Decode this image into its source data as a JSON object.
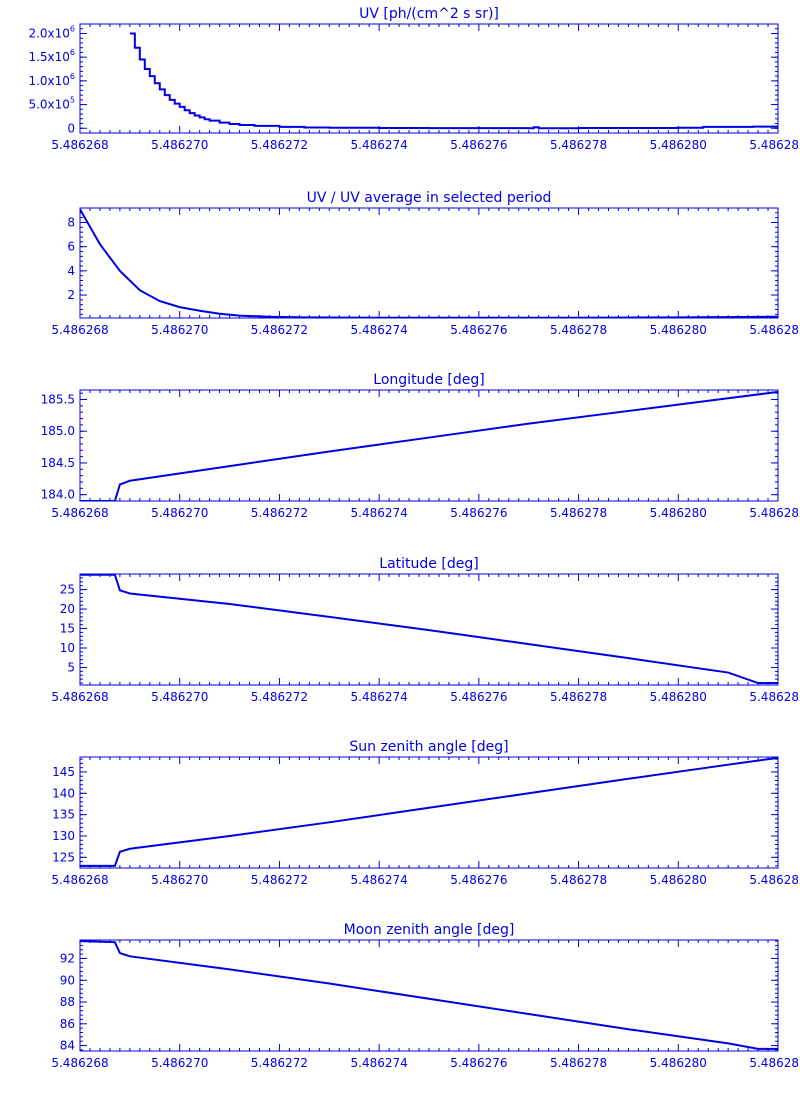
{
  "color": "#0000e0",
  "x_ticks": [
    "5.486268",
    "5.486270",
    "5.486272",
    "5.486274",
    "5.486276",
    "5.486278",
    "5.486280",
    "5.486282"
  ],
  "chart_data": [
    {
      "type": "line",
      "title": "UV [ph/(cm^2 s sr)]",
      "xlabel": "",
      "ylabel": "",
      "step": true,
      "xlim": [
        5.486268,
        5.486282
      ],
      "ylim": [
        -100000,
        2200000
      ],
      "y_ticks": [
        {
          "value": 0,
          "label": "0"
        },
        {
          "value": 500000,
          "label": "5.0x10",
          "exp": "5"
        },
        {
          "value": 1000000,
          "label": "1.0x10",
          "exp": "6"
        },
        {
          "value": 1500000,
          "label": "1.5x10",
          "exp": "6"
        },
        {
          "value": 2000000,
          "label": "2.0x10",
          "exp": "6"
        }
      ],
      "x": [
        5.486269,
        5.4862691,
        5.4862692,
        5.4862693,
        5.4862694,
        5.4862695,
        5.4862696,
        5.4862697,
        5.4862698,
        5.4862699,
        5.48627,
        5.4862701,
        5.4862702,
        5.4862703,
        5.4862704,
        5.4862705,
        5.4862706,
        5.4862708,
        5.486271,
        5.4862712,
        5.4862715,
        5.486272,
        5.4862725,
        5.486273,
        5.486274,
        5.486275,
        5.486276,
        5.486277,
        5.4862771,
        5.4862772,
        5.486278,
        5.486279,
        5.48628,
        5.4862805,
        5.486281,
        5.4862815,
        5.486282
      ],
      "y": [
        2000000,
        1700000,
        1450000,
        1250000,
        1100000,
        950000,
        820000,
        700000,
        600000,
        520000,
        450000,
        380000,
        320000,
        270000,
        230000,
        190000,
        160000,
        120000,
        90000,
        70000,
        50000,
        30000,
        15000,
        10000,
        5000,
        3000,
        2000,
        0,
        20000,
        0,
        5000,
        5000,
        10000,
        30000,
        30000,
        35000,
        60000
      ]
    },
    {
      "type": "line",
      "title": "UV / UV average in selected period",
      "xlabel": "",
      "ylabel": "",
      "xlim": [
        5.486268,
        5.486282
      ],
      "ylim": [
        0.1,
        9.2
      ],
      "y_ticks": [
        {
          "value": 2,
          "label": "2"
        },
        {
          "value": 4,
          "label": "4"
        },
        {
          "value": 6,
          "label": "6"
        },
        {
          "value": 8,
          "label": "8"
        }
      ],
      "x": [
        5.486268,
        5.4862684,
        5.4862688,
        5.4862692,
        5.4862696,
        5.48627,
        5.4862704,
        5.4862708,
        5.4862712,
        5.4862718,
        5.4862725,
        5.486274,
        5.486276,
        5.486278,
        5.48628,
        5.486282
      ],
      "y": [
        9.1,
        6.2,
        4.0,
        2.4,
        1.5,
        1.0,
        0.7,
        0.45,
        0.3,
        0.2,
        0.15,
        0.12,
        0.12,
        0.12,
        0.15,
        0.2
      ]
    },
    {
      "type": "line",
      "title": "Longitude [deg]",
      "xlabel": "",
      "ylabel": "",
      "xlim": [
        5.486268,
        5.486282
      ],
      "ylim": [
        183.9,
        185.65
      ],
      "y_ticks": [
        {
          "value": 184.0,
          "label": "184.0"
        },
        {
          "value": 184.5,
          "label": "184.5"
        },
        {
          "value": 185.0,
          "label": "185.0"
        },
        {
          "value": 185.5,
          "label": "185.5"
        }
      ],
      "x": [
        5.486268,
        5.4862687,
        5.4862688,
        5.486269,
        5.486271,
        5.486273,
        5.486275,
        5.486277,
        5.486279,
        5.486281,
        5.486282
      ],
      "y": [
        183.9,
        183.9,
        184.16,
        184.22,
        184.45,
        184.68,
        184.9,
        185.12,
        185.32,
        185.52,
        185.62
      ]
    },
    {
      "type": "line",
      "title": "Latitude [deg]",
      "xlabel": "",
      "ylabel": "",
      "xlim": [
        5.486268,
        5.486282
      ],
      "ylim": [
        0.5,
        29
      ],
      "y_ticks": [
        {
          "value": 5,
          "label": "5"
        },
        {
          "value": 10,
          "label": "10"
        },
        {
          "value": 15,
          "label": "15"
        },
        {
          "value": 20,
          "label": "20"
        },
        {
          "value": 25,
          "label": "25"
        }
      ],
      "x": [
        5.486268,
        5.4862687,
        5.4862688,
        5.486269,
        5.486271,
        5.486273,
        5.486275,
        5.486277,
        5.486279,
        5.486281,
        5.4862816,
        5.486282
      ],
      "y": [
        28.8,
        28.8,
        24.8,
        24.0,
        21.3,
        18.0,
        14.6,
        11.0,
        7.4,
        3.7,
        1.0,
        1.0
      ]
    },
    {
      "type": "line",
      "title": "Sun zenith angle [deg]",
      "xlabel": "",
      "ylabel": "",
      "xlim": [
        5.486268,
        5.486282
      ],
      "ylim": [
        122.5,
        148.5
      ],
      "y_ticks": [
        {
          "value": 125,
          "label": "125"
        },
        {
          "value": 130,
          "label": "130"
        },
        {
          "value": 135,
          "label": "135"
        },
        {
          "value": 140,
          "label": "140"
        },
        {
          "value": 145,
          "label": "145"
        }
      ],
      "x": [
        5.486268,
        5.4862687,
        5.4862688,
        5.486269,
        5.486271,
        5.486273,
        5.486275,
        5.486277,
        5.486279,
        5.486281,
        5.486282
      ],
      "y": [
        123.0,
        123.0,
        126.3,
        127.0,
        130.0,
        133.2,
        136.6,
        140.0,
        143.4,
        146.7,
        148.3
      ]
    },
    {
      "type": "line",
      "title": "Moon zenith angle [deg]",
      "xlabel": "",
      "ylabel": "",
      "xlim": [
        5.486268,
        5.486282
      ],
      "ylim": [
        83.5,
        93.7
      ],
      "y_ticks": [
        {
          "value": 84,
          "label": "84"
        },
        {
          "value": 86,
          "label": "86"
        },
        {
          "value": 88,
          "label": "88"
        },
        {
          "value": 90,
          "label": "90"
        },
        {
          "value": 92,
          "label": "92"
        }
      ],
      "x": [
        5.486268,
        5.4862687,
        5.4862688,
        5.486269,
        5.486271,
        5.486273,
        5.486275,
        5.486277,
        5.486279,
        5.486281,
        5.4862816,
        5.486282
      ],
      "y": [
        93.6,
        93.5,
        92.5,
        92.2,
        91.0,
        89.7,
        88.3,
        86.9,
        85.5,
        84.2,
        83.7,
        83.7
      ]
    }
  ]
}
